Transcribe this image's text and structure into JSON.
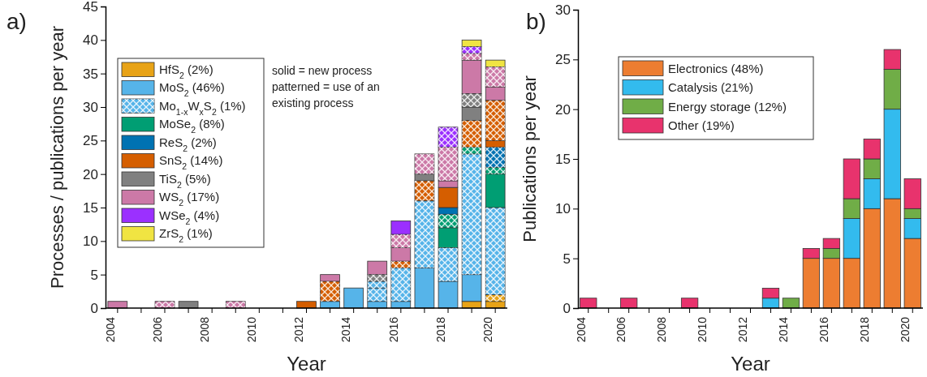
{
  "chart_data": [
    {
      "type": "bar",
      "title": "a)",
      "xlabel": "Year",
      "ylabel": "Processes / publications per year",
      "stacked": true,
      "legend": "top left",
      "ylim": [
        0,
        45
      ],
      "yticks": [
        0,
        5,
        10,
        15,
        20,
        25,
        30,
        35,
        40,
        45
      ],
      "categories": [
        "2004",
        null,
        "2006",
        null,
        "2008",
        null,
        "2010",
        null,
        "2012",
        null,
        "2014",
        null,
        "2016",
        null,
        "2018",
        null,
        "2020"
      ],
      "annotations": [
        "solid = new process\npatterned = use of an\nexisting process"
      ],
      "series": [
        {
          "name": "HfS$_{2}$ (2%)",
          "color": "#e8a317",
          "values": [
            null,
            null,
            null,
            null,
            null,
            null,
            null,
            null,
            null,
            null,
            null,
            null,
            null,
            null,
            null,
            1,
            1
          ]
        },
        {
          "color": "#e8a317",
          "values": [
            null,
            null,
            null,
            null,
            null,
            null,
            null,
            null,
            null,
            null,
            null,
            null,
            null,
            null,
            null,
            null,
            1
          ]
        },
        {
          "name": "MoS$_{2}$ (46%)",
          "color": "#56b4e9",
          "values": [
            null,
            null,
            null,
            null,
            null,
            null,
            null,
            null,
            null,
            1,
            3,
            1,
            1,
            6,
            4,
            4,
            null
          ]
        },
        {
          "color": "#56b4e9",
          "values": [
            null,
            null,
            null,
            null,
            null,
            null,
            null,
            null,
            null,
            null,
            null,
            2,
            5,
            10,
            5,
            18,
            13
          ]
        },
        {
          "name": "Mo$_{1-x}$W$_{x}$S$_{2}$ (1%)",
          "color": "#56b4e9",
          "values": [
            null,
            null,
            null,
            null,
            null,
            null,
            null,
            null,
            null,
            null,
            null,
            1,
            null,
            null,
            null,
            null,
            null
          ]
        },
        {
          "name": "MoSe$_{2}$ (8%)",
          "color": "#009e73",
          "values": [
            null,
            null,
            null,
            null,
            null,
            null,
            null,
            null,
            null,
            null,
            null,
            null,
            null,
            null,
            3,
            null,
            5
          ]
        },
        {
          "color": "#009e73",
          "values": [
            null,
            null,
            null,
            null,
            null,
            null,
            null,
            null,
            null,
            null,
            null,
            null,
            null,
            null,
            2,
            1,
            1
          ]
        },
        {
          "name": "ReS$_{2}$ (2%)",
          "color": "#0072b2",
          "values": [
            null,
            null,
            null,
            null,
            null,
            null,
            null,
            null,
            null,
            null,
            null,
            null,
            null,
            null,
            1,
            null,
            null
          ]
        },
        {
          "color": "#0072b2",
          "values": [
            null,
            null,
            null,
            null,
            null,
            null,
            null,
            null,
            null,
            null,
            null,
            null,
            null,
            null,
            null,
            null,
            3
          ]
        },
        {
          "name": "SnS$_{2}$ (14%)",
          "color": "#d55e00",
          "values": [
            null,
            null,
            null,
            null,
            null,
            null,
            null,
            null,
            1,
            null,
            null,
            null,
            null,
            null,
            3,
            null,
            1
          ]
        },
        {
          "color": "#d55e00",
          "values": [
            null,
            null,
            null,
            null,
            null,
            null,
            null,
            null,
            null,
            3,
            null,
            null,
            1,
            3,
            null,
            4,
            6
          ]
        },
        {
          "name": "TiS$_{2}$ (5%)",
          "color": "#808080",
          "values": [
            null,
            null,
            null,
            1,
            null,
            null,
            null,
            null,
            null,
            null,
            null,
            null,
            null,
            1,
            null,
            2,
            null
          ]
        },
        {
          "color": "#808080",
          "values": [
            null,
            null,
            null,
            null,
            null,
            null,
            null,
            null,
            null,
            null,
            null,
            1,
            null,
            null,
            null,
            2,
            null
          ]
        },
        {
          "name": "WS$_{2}$ (17%)",
          "color": "#cc79a7",
          "values": [
            1,
            null,
            null,
            null,
            null,
            null,
            null,
            null,
            null,
            1,
            null,
            2,
            2,
            null,
            1,
            5,
            2
          ]
        },
        {
          "color": "#cc79a7",
          "values": [
            null,
            null,
            1,
            null,
            null,
            1,
            null,
            null,
            null,
            null,
            null,
            null,
            2,
            3,
            5,
            1,
            3
          ]
        },
        {
          "name": "WSe$_{2}$ (4%)",
          "color": "#9b30ff",
          "values": [
            null,
            null,
            null,
            null,
            null,
            null,
            null,
            null,
            null,
            null,
            null,
            null,
            2,
            null,
            null,
            null,
            null
          ]
        },
        {
          "color": "#9b30ff",
          "values": [
            null,
            null,
            null,
            null,
            null,
            null,
            null,
            null,
            null,
            null,
            null,
            null,
            null,
            null,
            3,
            1,
            null
          ]
        },
        {
          "name": "ZrS$_{2}$ (1%)",
          "color": "#f0e442",
          "values": [
            null,
            null,
            null,
            null,
            null,
            null,
            null,
            null,
            null,
            null,
            null,
            null,
            null,
            null,
            null,
            1,
            1
          ]
        }
      ]
    },
    {
      "type": "bar",
      "title": "b)",
      "xlabel": "Year",
      "ylabel": "Publications per year",
      "stacked": true,
      "legend": "top left",
      "ylim": [
        0,
        30
      ],
      "yticks": [
        0,
        5,
        10,
        15,
        20,
        25,
        30
      ],
      "categories": [
        "2004",
        null,
        "2006",
        null,
        "2008",
        null,
        "2010",
        null,
        "2012",
        null,
        "2014",
        null,
        "2016",
        null,
        "2018",
        null,
        "2020"
      ],
      "series": [
        {
          "name": "Electronics (48%)",
          "color": "#ed7d31",
          "values": [
            null,
            null,
            null,
            null,
            null,
            null,
            null,
            null,
            null,
            null,
            null,
            5,
            5,
            5,
            10,
            11,
            7
          ]
        },
        {
          "name": "Catalysis (21%)",
          "color": "#33bbee",
          "values": [
            null,
            null,
            null,
            null,
            null,
            null,
            null,
            null,
            null,
            1,
            null,
            null,
            null,
            4,
            3,
            9,
            2
          ]
        },
        {
          "name": "Energy storage (12%)",
          "color": "#70ad47",
          "values": [
            null,
            null,
            null,
            null,
            null,
            null,
            null,
            null,
            null,
            null,
            1,
            null,
            1,
            2,
            2,
            4,
            1
          ]
        },
        {
          "name": "Other (19%)",
          "color": "#e8336d",
          "values": [
            1,
            null,
            1,
            null,
            null,
            1,
            null,
            null,
            null,
            1,
            null,
            1,
            1,
            4,
            2,
            2,
            3
          ]
        }
      ]
    }
  ]
}
